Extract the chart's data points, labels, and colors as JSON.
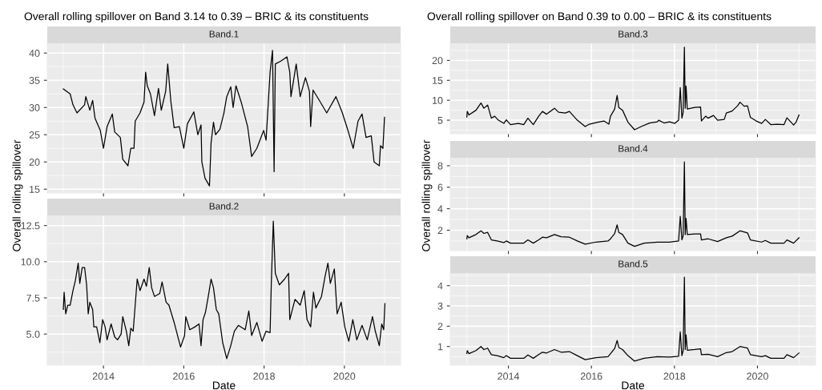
{
  "chart_data": [
    {
      "type": "line",
      "title": "Overall rolling spillover on Band 3.14 to 0.39 – BRIC & its constituents",
      "subtitle": "Band.1",
      "ylabel": "Overall rolling spillover",
      "grid": true,
      "tick_labels": "y",
      "xlim": [
        2012.6,
        2021.4
      ],
      "xticks": [
        2014,
        2016,
        2018,
        2020
      ],
      "ylim": [
        14.3,
        41.8
      ],
      "yticks": [
        15,
        20,
        25,
        30,
        35,
        40
      ],
      "x": [
        2013.0,
        2013.17,
        2013.24,
        2013.34,
        2013.53,
        2013.56,
        2013.66,
        2013.73,
        2013.79,
        2013.92,
        2014.0,
        2014.09,
        2014.22,
        2014.28,
        2014.42,
        2014.48,
        2014.61,
        2014.68,
        2014.76,
        2014.79,
        2014.91,
        2015.01,
        2015.05,
        2015.09,
        2015.17,
        2015.27,
        2015.37,
        2015.44,
        2015.55,
        2015.6,
        2015.68,
        2015.76,
        2015.89,
        2016.0,
        2016.09,
        2016.25,
        2016.35,
        2016.43,
        2016.45,
        2016.53,
        2016.64,
        2016.68,
        2016.74,
        2016.79,
        2016.9,
        2017.0,
        2017.07,
        2017.17,
        2017.23,
        2017.3,
        2017.43,
        2017.59,
        2017.69,
        2017.82,
        2017.99,
        2018.05,
        2018.15,
        2018.21,
        2018.25,
        2018.28,
        2018.41,
        2018.57,
        2018.64,
        2018.67,
        2018.8,
        2018.9,
        2019.03,
        2019.13,
        2019.16,
        2019.22,
        2019.36,
        2019.56,
        2019.79,
        2019.95,
        2020.08,
        2020.22,
        2020.34,
        2020.44,
        2020.54,
        2020.67,
        2020.74,
        2020.87,
        2020.9,
        2020.96,
        2021.0
      ],
      "series": [
        {
          "color": "#000000",
          "values": [
            33.4,
            32.5,
            30.5,
            29,
            30.5,
            32,
            29.5,
            31.3,
            28,
            25.8,
            22.5,
            26.5,
            28.8,
            25.5,
            24.5,
            20.5,
            19.3,
            22.5,
            22.5,
            27.5,
            29,
            31,
            36.5,
            34,
            32.5,
            28.5,
            33.5,
            29.5,
            33,
            38,
            31,
            26.3,
            26.5,
            22.5,
            27,
            29.2,
            25,
            26.8,
            20,
            17,
            15.6,
            23.5,
            27.3,
            25,
            26,
            29,
            32,
            33.8,
            30,
            34,
            31,
            26.5,
            21,
            22.5,
            25.8,
            24,
            36.5,
            40.5,
            18.2,
            38,
            38.5,
            39.3,
            36.5,
            32,
            38,
            32,
            35.5,
            33,
            26.5,
            33.2,
            31.5,
            29,
            32,
            29,
            26,
            22.5,
            27.5,
            28.8,
            24.5,
            24.8,
            20,
            19.3,
            23,
            22.5,
            28.2
          ]
        }
      ]
    },
    {
      "type": "line",
      "subtitle": "Band.2",
      "xlabel": "Date",
      "grid": true,
      "xlim": [
        2012.6,
        2021.4
      ],
      "xticks": [
        2014,
        2016,
        2018,
        2020
      ],
      "ylim": [
        2.85,
        13.2
      ],
      "yticks": [
        {
          "value": 5,
          "label": "5.0"
        },
        {
          "value": 7.5,
          "label": "7.5"
        },
        {
          "value": 10,
          "label": "10.0"
        },
        {
          "value": 12.5,
          "label": "12.5"
        }
      ],
      "x": [
        2013.0,
        2013.02,
        2013.06,
        2013.11,
        2013.17,
        2013.24,
        2013.3,
        2013.37,
        2013.41,
        2013.47,
        2013.53,
        2013.58,
        2013.62,
        2013.66,
        2013.73,
        2013.76,
        2013.83,
        2013.91,
        2013.98,
        2014.04,
        2014.09,
        2014.19,
        2014.28,
        2014.35,
        2014.44,
        2014.48,
        2014.57,
        2014.63,
        2014.68,
        2014.74,
        2014.79,
        2014.84,
        2014.91,
        2015.01,
        2015.07,
        2015.14,
        2015.2,
        2015.27,
        2015.4,
        2015.46,
        2015.56,
        2015.63,
        2015.76,
        2015.92,
        2016.02,
        2016.05,
        2016.15,
        2016.28,
        2016.38,
        2016.43,
        2016.48,
        2016.54,
        2016.61,
        2016.68,
        2016.74,
        2016.81,
        2016.87,
        2016.97,
        2017.07,
        2017.17,
        2017.26,
        2017.36,
        2017.53,
        2017.62,
        2017.69,
        2017.82,
        2017.95,
        2018.05,
        2018.15,
        2018.18,
        2018.23,
        2018.28,
        2018.38,
        2018.51,
        2018.61,
        2018.64,
        2018.77,
        2018.9,
        2019.0,
        2019.07,
        2019.16,
        2019.23,
        2019.29,
        2019.43,
        2019.52,
        2019.59,
        2019.65,
        2019.75,
        2019.82,
        2019.92,
        2020.01,
        2020.11,
        2020.21,
        2020.31,
        2020.44,
        2020.57,
        2020.7,
        2020.77,
        2020.87,
        2020.93,
        2020.98,
        2021.01
      ],
      "series": [
        {
          "color": "#000000",
          "values": [
            6.7,
            7.9,
            6.4,
            7.0,
            7.0,
            8.0,
            8.7,
            9.9,
            8.5,
            9.6,
            9.6,
            8.4,
            6.4,
            7.2,
            6.7,
            5.5,
            5.5,
            4.4,
            6.0,
            5.5,
            4.6,
            5.7,
            4.8,
            4.6,
            5.0,
            6.2,
            5.2,
            4.2,
            5.4,
            5.2,
            7.0,
            8.8,
            8.0,
            8.8,
            8.3,
            9.6,
            8.2,
            7.6,
            7.8,
            8.6,
            7.2,
            7.0,
            5.8,
            4.1,
            4.9,
            6.2,
            5.3,
            5.5,
            5.7,
            4.2,
            6.0,
            6.5,
            7.6,
            8.8,
            8.2,
            6.7,
            6.4,
            4.4,
            3.3,
            4.2,
            5.2,
            5.6,
            5.3,
            6.6,
            4.9,
            5.8,
            4.5,
            5.2,
            5.1,
            8.5,
            12.8,
            9.2,
            8.4,
            8.8,
            9.2,
            6.0,
            7.4,
            7.0,
            8.0,
            6.0,
            5.5,
            7.9,
            6.8,
            7.6,
            9.0,
            9.9,
            8.5,
            9.5,
            6.4,
            7.2,
            5.5,
            4.5,
            6.0,
            4.6,
            5.6,
            4.6,
            6.2,
            5.2,
            4.2,
            5.7,
            5.3,
            7.1
          ]
        }
      ]
    },
    {
      "type": "line",
      "title": "Overall rolling spillover on Band 0.39 to 0.00 – BRIC & its constituents",
      "subtitle": "Band.3",
      "grid": true,
      "tick_labels": "y",
      "xlim": [
        2012.6,
        2021.4
      ],
      "xticks": [
        2014,
        2016,
        2018,
        2020
      ],
      "ylim": [
        1.6,
        24.3
      ],
      "yticks": [
        5,
        10,
        15,
        20
      ],
      "x": [
        2013.0,
        2013.01,
        2013.05,
        2013.22,
        2013.34,
        2013.41,
        2013.5,
        2013.59,
        2013.67,
        2013.76,
        2013.89,
        2013.95,
        2014.05,
        2014.24,
        2014.37,
        2014.47,
        2014.6,
        2014.73,
        2014.82,
        2014.92,
        2015.11,
        2015.21,
        2015.37,
        2015.47,
        2015.66,
        2015.85,
        2015.95,
        2016.11,
        2016.3,
        2016.42,
        2016.46,
        2016.56,
        2016.62,
        2016.66,
        2016.75,
        2016.88,
        2017.04,
        2017.2,
        2017.4,
        2017.59,
        2017.62,
        2017.75,
        2017.88,
        2018.01,
        2018.1,
        2018.14,
        2018.18,
        2018.21,
        2018.24,
        2018.26,
        2018.28,
        2018.31,
        2018.49,
        2018.63,
        2018.65,
        2018.75,
        2018.81,
        2018.94,
        2019.04,
        2019.2,
        2019.25,
        2019.39,
        2019.52,
        2019.58,
        2019.68,
        2019.76,
        2019.83,
        2019.97,
        2020.1,
        2020.19,
        2020.32,
        2020.48,
        2020.64,
        2020.71,
        2020.8,
        2020.87,
        2020.93,
        2021.0
      ],
      "series": [
        {
          "color": "#000000",
          "values": [
            5.8,
            7.2,
            6.3,
            7.5,
            9.3,
            8.0,
            8.8,
            5.5,
            6.0,
            5.0,
            4.2,
            5.1,
            3.9,
            4.2,
            3.9,
            5.5,
            3.9,
            6.0,
            7.2,
            6.5,
            8.0,
            7.0,
            6.8,
            7.2,
            5.0,
            3.4,
            4.0,
            4.4,
            4.8,
            4.0,
            6.0,
            7.8,
            11.2,
            8.2,
            7.5,
            4.5,
            2.6,
            3.4,
            4.3,
            4.6,
            5.0,
            4.3,
            4.6,
            4.2,
            5.0,
            13.2,
            5.5,
            7.0,
            23.3,
            8.0,
            13.6,
            7.8,
            8.2,
            8.3,
            4.8,
            6.0,
            5.5,
            6.2,
            5.0,
            5.2,
            6.8,
            7.3,
            8.6,
            9.5,
            8.5,
            8.6,
            5.7,
            4.8,
            4.2,
            5.2,
            3.9,
            4.0,
            3.9,
            5.6,
            4.6,
            3.8,
            4.5,
            6.3
          ]
        }
      ]
    },
    {
      "type": "line",
      "subtitle": "Band.4",
      "ylabel": "Overall rolling spillover",
      "grid": true,
      "tick_labels": "y",
      "xlim": [
        2012.6,
        2021.4
      ],
      "xticks": [
        2014,
        2016,
        2018,
        2020
      ],
      "ylim": [
        0.1,
        8.74
      ],
      "yticks": [
        2,
        4,
        6,
        8
      ],
      "x": [
        2013.0,
        2013.01,
        2013.05,
        2013.22,
        2013.34,
        2013.41,
        2013.5,
        2013.59,
        2013.73,
        2013.89,
        2013.95,
        2014.05,
        2014.37,
        2014.47,
        2014.6,
        2014.73,
        2014.82,
        2014.92,
        2015.11,
        2015.27,
        2015.47,
        2015.66,
        2015.85,
        2016.11,
        2016.4,
        2016.46,
        2016.56,
        2016.62,
        2016.66,
        2016.75,
        2016.88,
        2017.04,
        2017.27,
        2017.59,
        2017.88,
        2018.1,
        2018.14,
        2018.18,
        2018.21,
        2018.24,
        2018.26,
        2018.28,
        2018.31,
        2018.49,
        2018.63,
        2018.65,
        2018.81,
        2019.04,
        2019.25,
        2019.39,
        2019.58,
        2019.76,
        2019.83,
        2020.1,
        2020.19,
        2020.32,
        2020.64,
        2020.71,
        2020.87,
        2021.0
      ],
      "series": [
        {
          "color": "#000000",
          "values": [
            1.2,
            1.5,
            1.3,
            1.6,
            1.95,
            1.7,
            1.8,
            1.1,
            1.0,
            0.85,
            1.0,
            0.8,
            0.8,
            1.1,
            0.8,
            1.1,
            1.35,
            1.3,
            1.6,
            1.4,
            1.35,
            1.0,
            0.7,
            0.9,
            1.0,
            1.2,
            1.7,
            2.5,
            1.8,
            1.6,
            0.8,
            0.5,
            0.8,
            0.9,
            0.9,
            1.0,
            3.3,
            1.1,
            1.5,
            8.35,
            1.6,
            3.1,
            1.6,
            1.65,
            1.65,
            1.1,
            1.2,
            0.95,
            1.3,
            1.45,
            1.95,
            1.75,
            1.1,
            0.9,
            1.05,
            0.8,
            0.8,
            1.1,
            0.8,
            1.3
          ]
        }
      ]
    },
    {
      "type": "line",
      "subtitle": "Band.5",
      "xlabel": "Date",
      "grid": true,
      "xlim": [
        2012.6,
        2021.4
      ],
      "xticks": [
        2014,
        2016,
        2018,
        2020
      ],
      "ylim": [
        0.08,
        4.62
      ],
      "yticks": [
        1,
        2,
        3,
        4
      ],
      "x": [
        2013.0,
        2013.01,
        2013.05,
        2013.22,
        2013.34,
        2013.41,
        2013.5,
        2013.59,
        2013.73,
        2013.89,
        2013.95,
        2014.05,
        2014.37,
        2014.47,
        2014.6,
        2014.73,
        2014.82,
        2014.92,
        2015.11,
        2015.27,
        2015.47,
        2015.66,
        2015.85,
        2016.11,
        2016.4,
        2016.46,
        2016.56,
        2016.62,
        2016.66,
        2016.75,
        2016.88,
        2017.04,
        2017.27,
        2017.59,
        2017.88,
        2018.1,
        2018.14,
        2018.18,
        2018.21,
        2018.24,
        2018.26,
        2018.28,
        2018.31,
        2018.49,
        2018.63,
        2018.65,
        2018.81,
        2019.04,
        2019.25,
        2019.39,
        2019.58,
        2019.76,
        2019.83,
        2020.1,
        2020.19,
        2020.32,
        2020.64,
        2020.71,
        2020.87,
        2021.0
      ],
      "series": [
        {
          "color": "#000000",
          "values": [
            0.65,
            0.8,
            0.65,
            0.8,
            1.0,
            0.85,
            0.92,
            0.6,
            0.55,
            0.45,
            0.55,
            0.42,
            0.42,
            0.58,
            0.42,
            0.6,
            0.72,
            0.68,
            0.85,
            0.72,
            0.75,
            0.55,
            0.35,
            0.45,
            0.5,
            0.65,
            0.9,
            1.3,
            0.95,
            0.85,
            0.55,
            0.28,
            0.42,
            0.5,
            0.48,
            0.52,
            1.72,
            0.55,
            0.8,
            4.42,
            0.85,
            1.58,
            0.82,
            0.85,
            0.88,
            0.6,
            0.62,
            0.5,
            0.7,
            0.75,
            1.0,
            0.92,
            0.6,
            0.5,
            0.55,
            0.42,
            0.42,
            0.6,
            0.45,
            0.68
          ]
        }
      ]
    }
  ]
}
